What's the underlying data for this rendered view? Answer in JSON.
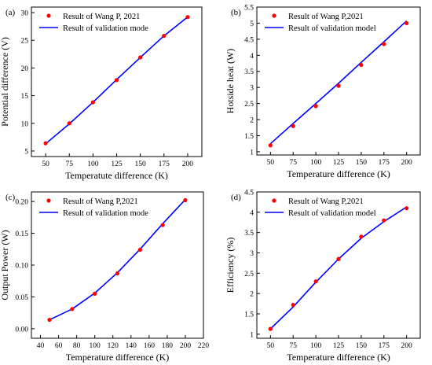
{
  "chart_data": [
    {
      "type": "scatter",
      "panel_label": "(a)",
      "xlabel": "Temperatute difference (K)",
      "ylabel": "Potential difference (V)",
      "xlim": [
        35,
        215
      ],
      "ylim": [
        4,
        31
      ],
      "xticks": [
        50,
        75,
        100,
        125,
        150,
        175,
        200
      ],
      "yticks": [
        5,
        10,
        15,
        20,
        25,
        30
      ],
      "legend_position": "top-left",
      "series": [
        {
          "name": "Result of Wang P, 2021",
          "kind": "marker",
          "color": "#ff0000",
          "x": [
            50,
            75,
            100,
            125,
            150,
            175,
            200
          ],
          "y": [
            6.4,
            10.0,
            13.8,
            17.8,
            21.9,
            25.8,
            29.2
          ]
        },
        {
          "name": "Result of validation mode",
          "kind": "line",
          "color": "#0000ff",
          "x": [
            50,
            75,
            100,
            125,
            150,
            175,
            200
          ],
          "y": [
            6.3,
            9.9,
            13.8,
            17.9,
            21.9,
            25.8,
            29.2
          ]
        }
      ]
    },
    {
      "type": "scatter",
      "panel_label": "(b)",
      "xlabel": "Temperature difference (K)",
      "ylabel": "Hotside heat (W)",
      "xlim": [
        35,
        215
      ],
      "ylim": [
        0.9,
        5.5
      ],
      "xticks": [
        50,
        75,
        100,
        125,
        150,
        175,
        200
      ],
      "yticks": [
        1.0,
        1.5,
        2.0,
        2.5,
        3.0,
        3.5,
        4.0,
        4.5,
        5.0,
        5.5
      ],
      "legend_position": "top-left",
      "series": [
        {
          "name": "Result of Wang P,2021",
          "kind": "marker",
          "color": "#ff0000",
          "x": [
            50,
            75,
            100,
            125,
            150,
            175,
            200
          ],
          "y": [
            1.2,
            1.8,
            2.42,
            3.05,
            3.7,
            4.35,
            5.0
          ]
        },
        {
          "name": "Result of validation model",
          "kind": "line",
          "color": "#0000ff",
          "x": [
            50,
            75,
            100,
            125,
            150,
            175,
            200
          ],
          "y": [
            1.25,
            1.88,
            2.5,
            3.13,
            3.78,
            4.42,
            5.07
          ]
        }
      ]
    },
    {
      "type": "scatter",
      "panel_label": "(c)",
      "xlabel": "Temperature difference (K)",
      "ylabel": "Output Power (W)",
      "xlim": [
        30,
        220
      ],
      "ylim": [
        -0.015,
        0.215
      ],
      "xticks": [
        40,
        60,
        80,
        100,
        120,
        140,
        160,
        180,
        200,
        220
      ],
      "yticks": [
        "0.00",
        "0.05",
        "0.10",
        "0.15",
        "0.20"
      ],
      "legend_position": "top-left",
      "series": [
        {
          "name": "Result of Wang P,2021",
          "kind": "marker",
          "color": "#ff0000",
          "x": [
            50,
            75,
            100,
            125,
            150,
            175,
            200
          ],
          "y": [
            0.014,
            0.031,
            0.055,
            0.087,
            0.124,
            0.163,
            0.202
          ]
        },
        {
          "name": "Result of validation mode",
          "kind": "line",
          "color": "#0000ff",
          "x": [
            50,
            75,
            100,
            125,
            150,
            175,
            200
          ],
          "y": [
            0.014,
            0.031,
            0.056,
            0.088,
            0.125,
            0.165,
            0.203
          ]
        }
      ]
    },
    {
      "type": "scatter",
      "panel_label": "(d)",
      "xlabel": "Temperature difference (K)",
      "ylabel": "Efficiency (%)",
      "xlim": [
        35,
        215
      ],
      "ylim": [
        0.9,
        4.5
      ],
      "xticks": [
        50,
        75,
        100,
        125,
        150,
        175,
        200
      ],
      "yticks": [
        1.0,
        1.5,
        2.0,
        2.5,
        3.0,
        3.5,
        4.0,
        4.5
      ],
      "legend_position": "top-left",
      "series": [
        {
          "name": "Result of Wang P,2021",
          "kind": "marker",
          "color": "#ff0000",
          "x": [
            50,
            75,
            100,
            125,
            150,
            175,
            200
          ],
          "y": [
            1.13,
            1.72,
            2.3,
            2.85,
            3.4,
            3.8,
            4.1
          ]
        },
        {
          "name": "Result of validation model",
          "kind": "line",
          "color": "#0000ff",
          "x": [
            50,
            75,
            100,
            125,
            150,
            175,
            200
          ],
          "y": [
            1.13,
            1.67,
            2.28,
            2.85,
            3.36,
            3.77,
            4.13
          ]
        }
      ]
    }
  ]
}
